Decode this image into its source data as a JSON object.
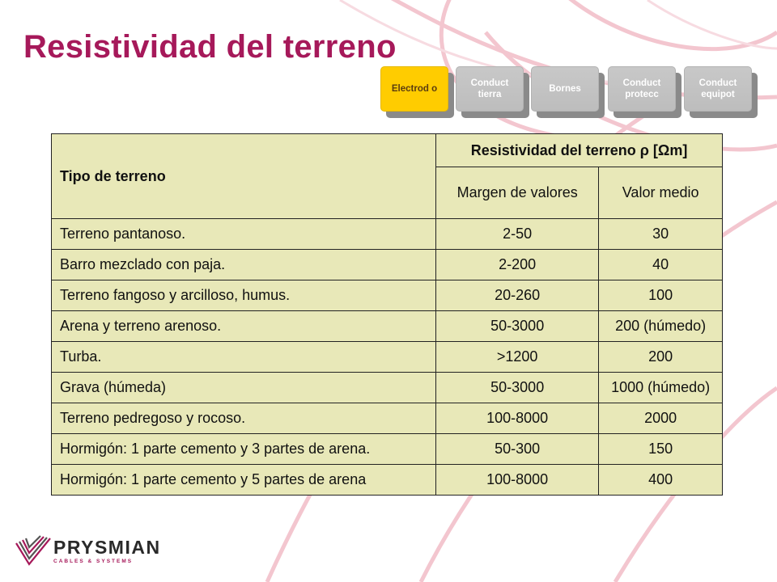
{
  "title": "Resistividad del terreno",
  "nav": {
    "tabs": [
      {
        "label": "Electrod o",
        "active": true
      },
      {
        "label": "Conduct tierra",
        "active": false
      },
      {
        "label": "Bornes",
        "active": false
      },
      {
        "label": "Conduct protecc",
        "active": false
      },
      {
        "label": "Conduct equipot",
        "active": false
      }
    ]
  },
  "table": {
    "header_tipo": "Tipo de terreno",
    "header_group": "Resistividad del terreno ρ [Ωm]",
    "header_margen": "Margen de valores",
    "header_medio": "Valor medio",
    "rows": [
      {
        "tipo": "Terreno pantanoso.",
        "margen": "2-50",
        "medio": "30"
      },
      {
        "tipo": "Barro mezclado con paja.",
        "margen": "2-200",
        "medio": "40"
      },
      {
        "tipo": "Terreno fangoso y arcilloso, humus.",
        "margen": "20-260",
        "medio": "100"
      },
      {
        "tipo": "Arena y terreno arenoso.",
        "margen": "50-3000",
        "medio": "200 (húmedo)"
      },
      {
        "tipo": "Turba.",
        "margen": ">1200",
        "medio": "200"
      },
      {
        "tipo": "Grava (húmeda)",
        "margen": "50-3000",
        "medio": "1000 (húmedo)"
      },
      {
        "tipo": "Terreno pedregoso y rocoso.",
        "margen": "100-8000",
        "medio": "2000"
      },
      {
        "tipo": "Hormigón: 1 parte cemento y 3 partes de arena.",
        "margen": "50-300",
        "medio": "150"
      },
      {
        "tipo": "Hormigón: 1 parte cemento y 5 partes de arena",
        "margen": "100-8000",
        "medio": "400"
      }
    ]
  },
  "logo": {
    "wordmark": "PRYSMIAN",
    "tagline": "CABLES & SYSTEMS",
    "icon": "prysmian-logo-icon"
  },
  "colors": {
    "title": "#a6195a",
    "table_bg": "#e8e8b8",
    "tab_active": "#ffcc00",
    "tab_inactive": "#c4c4c4",
    "swirl": "#f3c6cf"
  }
}
